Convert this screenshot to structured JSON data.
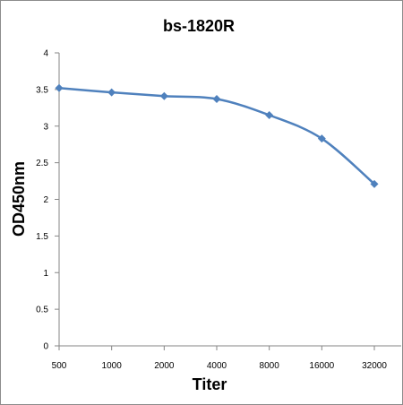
{
  "chart_data": {
    "type": "line",
    "title": "bs-1820R",
    "xlabel": "Titer",
    "ylabel": "OD450nm",
    "categories": [
      "500",
      "1000",
      "2000",
      "4000",
      "8000",
      "16000",
      "32000"
    ],
    "series": [
      {
        "values": [
          3.52,
          3.46,
          3.41,
          3.37,
          3.15,
          2.83,
          2.21
        ]
      }
    ],
    "ylim": [
      0,
      4
    ],
    "yticks": [
      0,
      0.5,
      1,
      1.5,
      2,
      2.5,
      3,
      3.5,
      4
    ],
    "grid": false,
    "line_color": "#4F81BD",
    "marker": "diamond"
  }
}
